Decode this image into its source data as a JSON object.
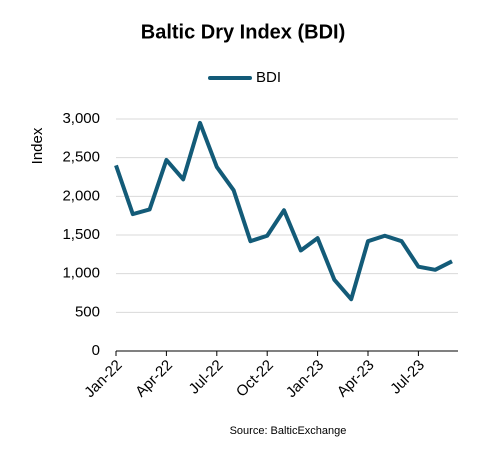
{
  "chart_data": {
    "type": "line",
    "title": "Baltic Dry Index (BDI)",
    "y_label": "Index",
    "source": "Source: BalticExchange",
    "categories": [
      "Jan-22",
      null,
      null,
      "Apr-22",
      null,
      null,
      "Jul-22",
      null,
      null,
      "Oct-22",
      null,
      null,
      "Jan-23",
      null,
      null,
      "Apr-23",
      null,
      null,
      "Jul-23",
      null,
      null
    ],
    "series": [
      {
        "name": "BDI",
        "color": "#135b78",
        "values": [
          2400,
          1770,
          1830,
          2470,
          2220,
          2950,
          2380,
          2080,
          1420,
          1490,
          1820,
          1300,
          1460,
          920,
          670,
          1420,
          1490,
          1420,
          1090,
          1050,
          1160
        ]
      }
    ],
    "ylim": [
      0,
      3000
    ],
    "yticks": [
      0,
      500,
      {
        "value": 1000,
        "label": "1,000"
      },
      {
        "value": 1500,
        "label": "1,500"
      },
      {
        "value": 2000,
        "label": "2,000"
      },
      {
        "value": 2500,
        "label": "2,500"
      },
      {
        "value": 3000,
        "label": "3,000"
      }
    ],
    "grid": true,
    "legend": "top"
  }
}
